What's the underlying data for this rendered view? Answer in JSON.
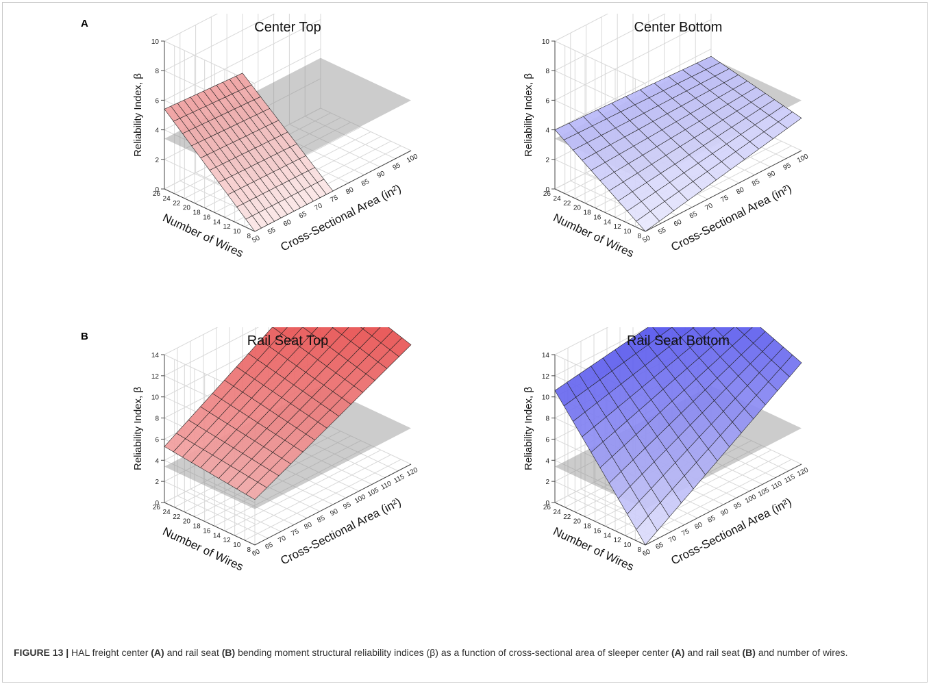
{
  "panel_labels": [
    "A",
    "B"
  ],
  "caption": {
    "label": "FIGURE 13 |",
    "parts": [
      {
        "t": " HAL freight center ",
        "b": false
      },
      {
        "t": "(A)",
        "b": true
      },
      {
        "t": " and rail seat ",
        "b": false
      },
      {
        "t": "(B)",
        "b": true
      },
      {
        "t": " bending moment structural reliability indices (β) as a function of cross-sectional area of sleeper center ",
        "b": false
      },
      {
        "t": "(A)",
        "b": true
      },
      {
        "t": " and rail seat ",
        "b": false
      },
      {
        "t": "(B)",
        "b": true
      },
      {
        "t": " and number of wires.",
        "b": false
      }
    ]
  },
  "chart_data": [
    {
      "type": "surface3d",
      "title": "Center Top",
      "panel": "A",
      "xlabel": "Cross-Sectional Area (in²)",
      "ylabel": "Number of Wires",
      "zlabel": "Reliability Index, β",
      "x_ticks": [
        50,
        55,
        60,
        65,
        70,
        75,
        80,
        85,
        90,
        95,
        100
      ],
      "y_ticks": [
        8,
        10,
        12,
        14,
        16,
        18,
        20,
        22,
        24,
        26
      ],
      "z_ticks": [
        0,
        2,
        4,
        6,
        8,
        10
      ],
      "xlim": [
        50,
        100
      ],
      "ylim": [
        8,
        26
      ],
      "zlim": [
        0,
        10
      ],
      "surface_color": "#e04848",
      "surface_x_range": [
        50,
        75
      ],
      "surface_y_range": [
        8,
        26
      ],
      "surface_grid": [
        12,
        10
      ],
      "corner_values": {
        "x_min_y_min": 0.0,
        "x_max_y_min": 0.0,
        "x_min_y_max": 5.4,
        "x_max_y_max": 5.1
      },
      "reference_plane_z": 3.4
    },
    {
      "type": "surface3d",
      "title": "Center Bottom",
      "panel": "A",
      "xlabel": "Cross-Sectional Area (in²)",
      "ylabel": "Number of Wires",
      "zlabel": "Reliability Index, β",
      "x_ticks": [
        50,
        55,
        60,
        65,
        70,
        75,
        80,
        85,
        90,
        95,
        100
      ],
      "y_ticks": [
        8,
        10,
        12,
        14,
        16,
        18,
        20,
        22,
        24,
        26
      ],
      "z_ticks": [
        0,
        2,
        4,
        6,
        8,
        10
      ],
      "xlim": [
        50,
        100
      ],
      "ylim": [
        8,
        26
      ],
      "zlim": [
        0,
        10
      ],
      "surface_color": "#5656ee",
      "surface_x_range": [
        50,
        100
      ],
      "surface_y_range": [
        8,
        26
      ],
      "surface_grid": [
        11,
        10
      ],
      "corner_values": {
        "x_min_y_min": 0.0,
        "x_max_y_min": 2.2,
        "x_min_y_max": 4.0,
        "x_max_y_max": 3.5
      },
      "reference_plane_z": 3.4
    },
    {
      "type": "surface3d",
      "title": "Rail Seat Top",
      "panel": "B",
      "xlabel": "Cross-Sectional Area (in²)",
      "ylabel": "Number of Wires",
      "zlabel": "Reliability Index, β",
      "x_ticks": [
        60,
        65,
        70,
        75,
        80,
        85,
        90,
        95,
        100,
        105,
        110,
        115,
        120
      ],
      "y_ticks": [
        8,
        10,
        12,
        14,
        16,
        18,
        20,
        22,
        24,
        26
      ],
      "z_ticks": [
        0,
        2,
        4,
        6,
        8,
        10,
        12,
        14
      ],
      "xlim": [
        60,
        120
      ],
      "ylim": [
        8,
        26
      ],
      "zlim": [
        0,
        14
      ],
      "surface_color": "#e02020",
      "surface_x_range": [
        60,
        120
      ],
      "surface_y_range": [
        8,
        26
      ],
      "surface_grid": [
        13,
        10
      ],
      "corner_values": {
        "x_min_y_min": 4.3,
        "x_max_y_min": 11.3,
        "x_min_y_max": 5.3,
        "x_max_y_max": 14.0
      },
      "reference_plane_z": 3.4
    },
    {
      "type": "surface3d",
      "title": "Rail Seat Bottom",
      "panel": "B",
      "xlabel": "Cross-Sectional Area (in²)",
      "ylabel": "Number of Wires",
      "zlabel": "Reliability Index, β",
      "x_ticks": [
        60,
        65,
        70,
        75,
        80,
        85,
        90,
        95,
        100,
        105,
        110,
        115,
        120
      ],
      "y_ticks": [
        8,
        10,
        12,
        14,
        16,
        18,
        20,
        22,
        24,
        26
      ],
      "z_ticks": [
        0,
        2,
        4,
        6,
        8,
        10,
        12,
        14
      ],
      "xlim": [
        60,
        120
      ],
      "ylim": [
        8,
        26
      ],
      "zlim": [
        0,
        14
      ],
      "surface_color": "#2828e8",
      "surface_x_range": [
        60,
        120
      ],
      "surface_y_range": [
        8,
        26
      ],
      "surface_grid": [
        13,
        10
      ],
      "corner_values": {
        "x_min_y_min": 0.0,
        "x_max_y_min": 9.6,
        "x_min_y_max": 10.6,
        "x_max_y_max": 13.0
      },
      "reference_plane_z": 3.4
    }
  ]
}
